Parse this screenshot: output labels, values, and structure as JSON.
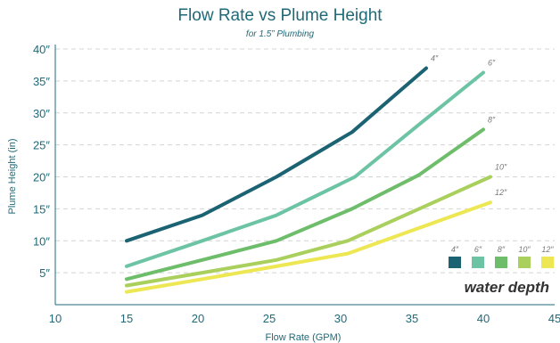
{
  "chart_data": {
    "type": "line",
    "title": "Flow Rate vs Plume Height",
    "subtitle": "for 1.5” Plumbing",
    "xlabel": "Flow Rate (GPM)",
    "ylabel": "Plume Height (in)",
    "xlim": [
      10,
      45
    ],
    "ylim": [
      0,
      40
    ],
    "xticks": [
      10,
      15,
      20,
      25,
      30,
      35,
      40,
      45
    ],
    "yticks": [
      5,
      10,
      15,
      20,
      25,
      30,
      35,
      40
    ],
    "ytick_labels": [
      "5″",
      "10″",
      "15″",
      "20″",
      "25″",
      "30″",
      "35″",
      "40″"
    ],
    "grid": "horizontal dashed",
    "legend_title": "water depth",
    "legend_position": "bottom-right",
    "series": [
      {
        "name": "4″",
        "color": "#1b6373",
        "points": [
          [
            15,
            10
          ],
          [
            20.3,
            14
          ],
          [
            25.5,
            20
          ],
          [
            30.8,
            27
          ],
          [
            36,
            37
          ]
        ]
      },
      {
        "name": "6″",
        "color": "#6cc4a4",
        "points": [
          [
            15,
            6
          ],
          [
            20.3,
            10
          ],
          [
            25.5,
            14
          ],
          [
            31,
            20
          ],
          [
            35.5,
            28.2
          ],
          [
            40,
            36.3
          ]
        ]
      },
      {
        "name": "8″",
        "color": "#6dbd6a",
        "points": [
          [
            15,
            4
          ],
          [
            20.3,
            7
          ],
          [
            25.5,
            10
          ],
          [
            30.8,
            15
          ],
          [
            35.5,
            20.3
          ],
          [
            40,
            27.4
          ]
        ]
      },
      {
        "name": "10″",
        "color": "#a9cf5c",
        "points": [
          [
            15,
            3
          ],
          [
            20.3,
            5
          ],
          [
            25.5,
            7
          ],
          [
            30.5,
            10
          ],
          [
            35.5,
            15
          ],
          [
            40.5,
            20
          ]
        ]
      },
      {
        "name": "12″",
        "color": "#ece752",
        "points": [
          [
            15,
            2
          ],
          [
            20.3,
            4
          ],
          [
            25.5,
            6
          ],
          [
            30.5,
            8
          ],
          [
            35.5,
            12
          ],
          [
            40.5,
            16
          ]
        ]
      }
    ]
  }
}
